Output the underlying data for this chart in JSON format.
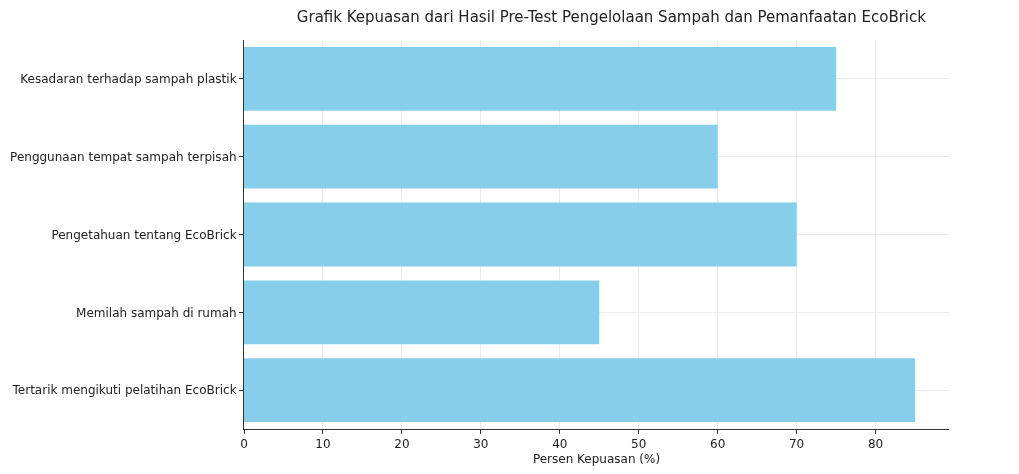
{
  "chart_data": {
    "type": "bar",
    "orientation": "horizontal",
    "title": "Grafik Kepuasan dari Hasil Pre-Test Pengelolaan Sampah dan Pemanfaatan EcoBrick",
    "xlabel": "Persen Kepuasan (%)",
    "categories": [
      "Kesadaran terhadap sampah plastik",
      "Penggunaan tempat sampah terpisah",
      "Pengetahuan tentang EcoBrick",
      "Memilah sampah di rumah",
      "Tertarik mengikuti pelatihan EcoBrick"
    ],
    "values": [
      75,
      60,
      70,
      45,
      85
    ],
    "color": "#87ceeb",
    "xlim": [
      0,
      89.3
    ],
    "xticks": [
      0,
      10,
      20,
      30,
      40,
      50,
      60,
      70,
      80
    ],
    "grid": true
  }
}
